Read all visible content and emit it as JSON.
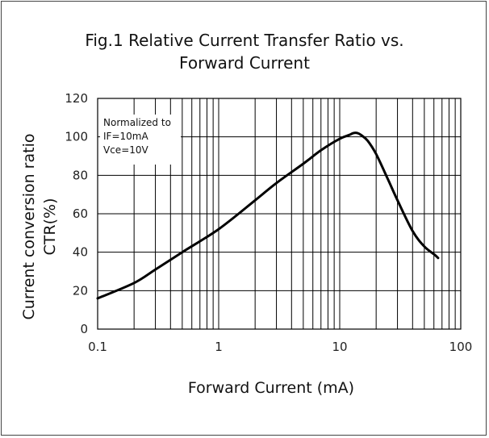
{
  "chart_data": {
    "type": "line",
    "title_line1": "Fig.1  Relative Current Transfer Ratio vs.",
    "title_line2": "Forward Current",
    "xlabel": "Forward Current (mA)",
    "ylabel_line1": "Current conversion ratio",
    "ylabel_line2": "CTR(%)",
    "x_scale": "log",
    "xlim": [
      0.1,
      100
    ],
    "ylim": [
      0,
      120
    ],
    "x_ticks": [
      "0.1",
      "1",
      "10",
      "100"
    ],
    "y_ticks": [
      "0",
      "20",
      "40",
      "60",
      "80",
      "100",
      "120"
    ],
    "annotation": [
      "Normalized to",
      "IF=10mA",
      "Vce=10V"
    ],
    "grid": true,
    "series": [
      {
        "x": [
          0.1,
          0.2,
          0.3,
          0.5,
          1,
          2,
          3,
          5,
          7,
          10,
          12,
          13,
          14,
          15,
          17,
          20,
          25,
          30,
          40,
          50,
          60,
          65
        ],
        "y": [
          16,
          24,
          31,
          40,
          52,
          67,
          76,
          86,
          93,
          99,
          101,
          102,
          102,
          101,
          98,
          91,
          78,
          67,
          51,
          43,
          39,
          37
        ]
      }
    ]
  }
}
